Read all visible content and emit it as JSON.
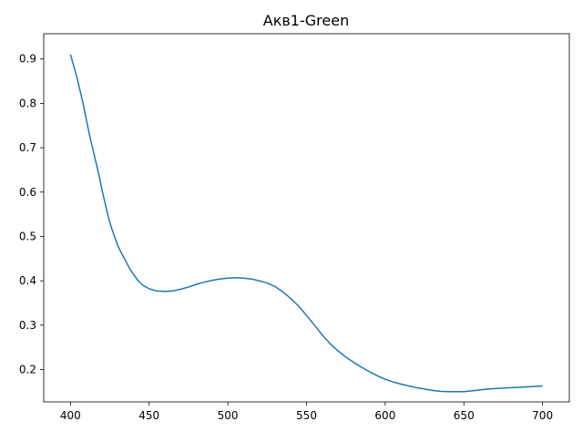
{
  "chart_data": {
    "type": "line",
    "title": "Акв1-Green",
    "xlabel": "",
    "ylabel": "",
    "xlim": [
      383,
      717
    ],
    "ylim": [
      0.127,
      0.957
    ],
    "xticks": [
      400,
      450,
      500,
      550,
      600,
      650,
      700
    ],
    "yticks": [
      0.2,
      0.3,
      0.4,
      0.5,
      0.6,
      0.7,
      0.8,
      0.9
    ],
    "grid": false,
    "legend": "none",
    "series": [
      {
        "color": "#1f77b4",
        "points": [
          [
            400,
            0.91
          ],
          [
            402,
            0.885
          ],
          [
            404,
            0.86
          ],
          [
            406,
            0.83
          ],
          [
            408,
            0.8
          ],
          [
            410,
            0.765
          ],
          [
            412,
            0.73
          ],
          [
            414,
            0.7
          ],
          [
            416,
            0.67
          ],
          [
            418,
            0.64
          ],
          [
            420,
            0.605
          ],
          [
            422,
            0.575
          ],
          [
            424,
            0.545
          ],
          [
            426,
            0.52
          ],
          [
            428,
            0.5
          ],
          [
            430,
            0.48
          ],
          [
            432,
            0.465
          ],
          [
            435,
            0.445
          ],
          [
            438,
            0.425
          ],
          [
            440,
            0.415
          ],
          [
            443,
            0.4
          ],
          [
            446,
            0.39
          ],
          [
            450,
            0.382
          ],
          [
            455,
            0.377
          ],
          [
            460,
            0.376
          ],
          [
            465,
            0.377
          ],
          [
            470,
            0.381
          ],
          [
            475,
            0.386
          ],
          [
            480,
            0.392
          ],
          [
            485,
            0.397
          ],
          [
            490,
            0.401
          ],
          [
            495,
            0.404
          ],
          [
            500,
            0.406
          ],
          [
            505,
            0.407
          ],
          [
            510,
            0.406
          ],
          [
            515,
            0.404
          ],
          [
            520,
            0.4
          ],
          [
            525,
            0.395
          ],
          [
            530,
            0.387
          ],
          [
            535,
            0.375
          ],
          [
            540,
            0.36
          ],
          [
            545,
            0.343
          ],
          [
            550,
            0.322
          ],
          [
            555,
            0.3
          ],
          [
            560,
            0.278
          ],
          [
            565,
            0.258
          ],
          [
            570,
            0.242
          ],
          [
            575,
            0.228
          ],
          [
            580,
            0.216
          ],
          [
            585,
            0.205
          ],
          [
            590,
            0.195
          ],
          [
            595,
            0.186
          ],
          [
            600,
            0.178
          ],
          [
            605,
            0.172
          ],
          [
            610,
            0.167
          ],
          [
            615,
            0.163
          ],
          [
            620,
            0.159
          ],
          [
            625,
            0.156
          ],
          [
            630,
            0.153
          ],
          [
            635,
            0.151
          ],
          [
            640,
            0.15
          ],
          [
            645,
            0.15
          ],
          [
            650,
            0.15
          ],
          [
            655,
            0.152
          ],
          [
            660,
            0.154
          ],
          [
            665,
            0.156
          ],
          [
            670,
            0.157
          ],
          [
            675,
            0.158
          ],
          [
            680,
            0.159
          ],
          [
            685,
            0.16
          ],
          [
            690,
            0.161
          ],
          [
            695,
            0.162
          ],
          [
            700,
            0.163
          ]
        ]
      }
    ]
  }
}
